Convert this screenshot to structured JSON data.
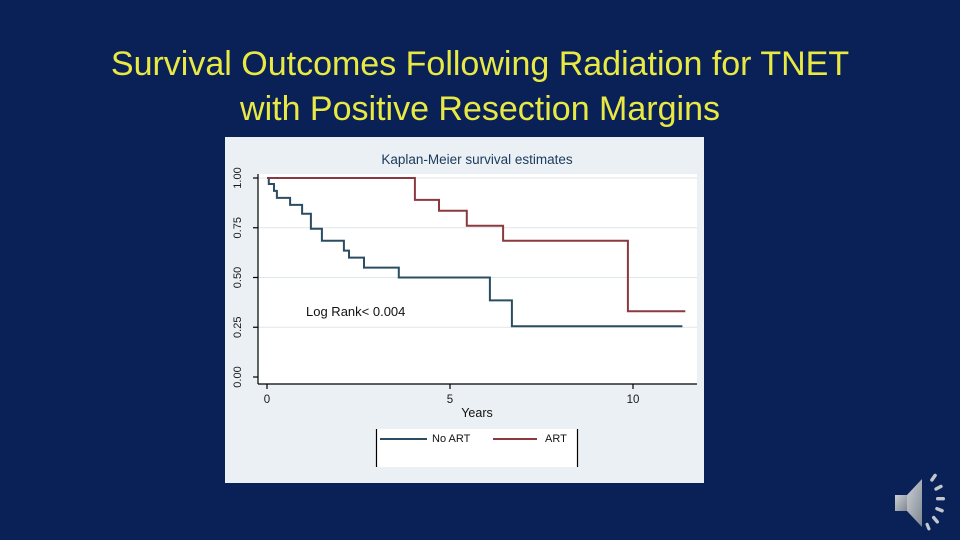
{
  "slide": {
    "background_color": "#0a2158",
    "title": {
      "line1": "Survival Outcomes Following Radiation for TNET",
      "line2": "with Positive Resection Margins",
      "color": "#e9e943"
    }
  },
  "chart_data": {
    "type": "line",
    "subtype": "kaplan-meier-step",
    "title": "Kaplan-Meier survival estimates",
    "xlabel": "Years",
    "ylabel": "",
    "annotation": "Log Rank< 0.004",
    "xlim": [
      0,
      11.8
    ],
    "ylim": [
      0,
      1
    ],
    "grid": "horizontal",
    "panel_color": "#eaf0f3",
    "plot_bg_color": "#ffffff",
    "grid_color": "#dde6ea",
    "axis_color": "#000000",
    "title_color": "#1d3b60",
    "x_ticks": [
      {
        "value": 0,
        "label": "0"
      },
      {
        "value": 5,
        "label": "5"
      },
      {
        "value": 10,
        "label": "10"
      }
    ],
    "y_ticks": [
      {
        "value": 0.0,
        "label": "0.00"
      },
      {
        "value": 0.25,
        "label": "0.25"
      },
      {
        "value": 0.5,
        "label": "0.50"
      },
      {
        "value": 0.75,
        "label": "0.75"
      },
      {
        "value": 1.0,
        "label": "1.00"
      }
    ],
    "legend": {
      "position": "bottom-center",
      "entries": [
        "No ART",
        "ART"
      ]
    },
    "series": [
      {
        "name": "No ART",
        "color": "#2b4d62",
        "start": [
          0,
          1.0
        ],
        "drops": [
          [
            0.05,
            0.97
          ],
          [
            0.19,
            0.935
          ],
          [
            0.27,
            0.9
          ],
          [
            0.63,
            0.865
          ],
          [
            0.96,
            0.82
          ],
          [
            1.2,
            0.745
          ],
          [
            1.5,
            0.685
          ],
          [
            2.1,
            0.635
          ],
          [
            2.24,
            0.6
          ],
          [
            2.65,
            0.55
          ],
          [
            3.6,
            0.5
          ],
          [
            6.09,
            0.385
          ],
          [
            6.69,
            0.255
          ]
        ],
        "end_t": 11.35
      },
      {
        "name": "ART",
        "color": "#8a3a3f",
        "start": [
          0,
          1.0
        ],
        "drops": [
          [
            4.04,
            0.89
          ],
          [
            4.7,
            0.835
          ],
          [
            5.46,
            0.76
          ],
          [
            6.45,
            0.685
          ],
          [
            9.86,
            0.33
          ]
        ],
        "end_t": 11.43
      }
    ]
  },
  "audio": {
    "icon": "speaker-with-sound-waves"
  }
}
